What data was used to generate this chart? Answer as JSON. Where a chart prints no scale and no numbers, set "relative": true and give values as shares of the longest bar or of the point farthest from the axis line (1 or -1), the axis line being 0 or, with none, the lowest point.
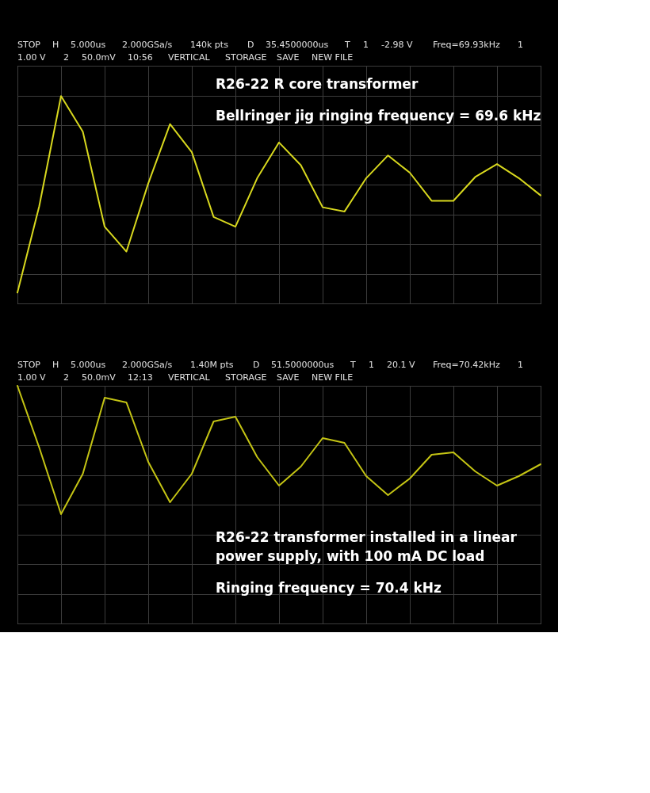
{
  "chart_data": [
    {
      "type": "line",
      "title": "R26-22 R core transformer",
      "subtitle": "Bellringer jig ringing frequency = 69.6 kHz",
      "annotations": [
        "STOP",
        "H",
        "5.000us",
        "2.000GSa/s",
        "140k pts",
        "D",
        "35.4500000us",
        "T",
        "1",
        "-2.98 V",
        "Freq=69.93kHz",
        "1",
        "1.00 V",
        "2",
        "50.0mV",
        "10:56",
        "VERTICAL",
        "STORAGE",
        "SAVE",
        "NEW FILE"
      ],
      "categories": [
        null,
        null,
        null,
        null,
        null,
        null,
        null,
        null,
        null,
        null,
        null,
        null,
        null,
        null,
        null,
        null,
        null,
        null,
        null,
        null,
        null,
        null,
        null,
        null,
        null
      ],
      "series": [
        {
          "color": "#d8d81e",
          "values": [
            -1.0,
            -0.2,
            0.82,
            0.49,
            -0.39,
            -0.62,
            0.01,
            0.56,
            0.3,
            -0.3,
            -0.39,
            0.06,
            0.39,
            0.18,
            -0.21,
            -0.25,
            0.06,
            0.27,
            0.11,
            -0.15,
            -0.15,
            0.07,
            0.19,
            0.06,
            -0.1
          ]
        }
      ],
      "relative": true,
      "grid": true,
      "tick_labels": false
    },
    {
      "type": "line",
      "title": "R26-22 transformer installed in a linear power supply, with 100 mA DC load",
      "subtitle": "Ringing frequency = 70.4 kHz",
      "annotations": [
        "STOP",
        "H",
        "5.000us",
        "2.000GSa/s",
        "1.40M pts",
        "D",
        "51.5000000us",
        "T",
        "1",
        "20.1 V",
        "Freq=70.42kHz",
        "1",
        "1.00 V",
        "2",
        "50.0mV",
        "12:13",
        "VERTICAL",
        "STORAGE",
        "SAVE",
        "NEW FILE"
      ],
      "categories": [
        null,
        null,
        null,
        null,
        null,
        null,
        null,
        null,
        null,
        null,
        null,
        null,
        null,
        null,
        null,
        null,
        null,
        null,
        null,
        null,
        null,
        null,
        null,
        null,
        null
      ],
      "series": [
        {
          "color": "#c4c414",
          "values": [
            1.0,
            0.74,
            0.46,
            0.63,
            0.95,
            0.93,
            0.68,
            0.51,
            0.63,
            0.85,
            0.87,
            0.7,
            0.58,
            0.66,
            0.78,
            0.76,
            0.62,
            0.54,
            0.61,
            0.71,
            0.72,
            0.64,
            0.58,
            0.62,
            0.67
          ]
        }
      ],
      "relative": true,
      "grid": true,
      "tick_labels": false
    }
  ]
}
